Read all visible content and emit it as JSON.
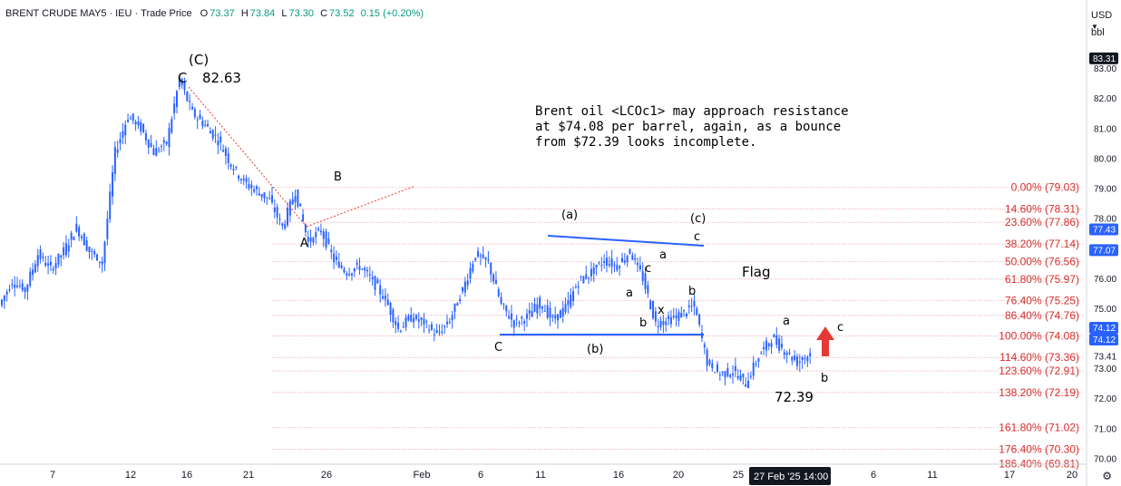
{
  "header": {
    "symbol": "BRENT CRUDE MAY5",
    "exchange": "IEU",
    "price_type": "Trade Price",
    "open_label": "O",
    "open": "73.37",
    "high_label": "H",
    "high": "73.84",
    "low_label": "L",
    "low": "73.30",
    "close_label": "C",
    "close": "73.52",
    "change": "0.15 (+0.20%)",
    "separator": "·"
  },
  "axis_top": {
    "currency": "USD",
    "currency_icon": "chevron-down-icon",
    "unit": "bbl"
  },
  "settings_icon": "gear-icon",
  "note": "Brent oil <LCOc1> may approach resistance\nat $74.08 per barrel, again, as a bounce\nfrom $72.39 looks incomplete.",
  "labels": {
    "wave_C_top": "(C)",
    "top_C": "C",
    "top_value": "82.63",
    "A": "A",
    "B": "B",
    "C_low": "C",
    "wa": "(a)",
    "wb": "(b)",
    "wc": "(c)",
    "c_top": "c",
    "a1": "a",
    "c1": "c",
    "a2": "a",
    "b1": "b",
    "b2": "b",
    "x1": "x",
    "flag": "Flag",
    "a3": "a",
    "c3": "c",
    "b3": "b",
    "low_value": "72.39"
  },
  "colors": {
    "up": "#089981",
    "down": "#2962ff",
    "candle": "#2962ff",
    "fib_text": "#d32f2f",
    "fib_line": "#e57373",
    "trend": "#2962ff",
    "dotted": "#e53935",
    "arrow": "#e53935"
  },
  "chart_data": {
    "type": "candlestick",
    "title": "BRENT CRUDE MAY5 · IEU · Trade Price",
    "ylim": [
      69.8,
      84.0
    ],
    "y_ticks": [
      "83.00",
      "82.00",
      "81.00",
      "80.00",
      "79.00",
      "78.00",
      "77.00",
      "76.00",
      "75.00",
      "74.00",
      "73.00",
      "72.00",
      "71.00",
      "70.00"
    ],
    "x_ticks": [
      "7",
      "12",
      "16",
      "21",
      "26",
      "Feb",
      "6",
      "11",
      "16",
      "20",
      "25",
      "6",
      "11",
      "17",
      "20"
    ],
    "series": [
      {
        "name": "",
        "points": [
          [
            "d0",
            75.1
          ],
          [
            "d1",
            75.9
          ],
          [
            "d2",
            75.6
          ],
          [
            "d3",
            76.8
          ],
          [
            "d4",
            76.3
          ],
          [
            "d5",
            76.9
          ],
          [
            "d6",
            77.7
          ],
          [
            "d7",
            76.9
          ],
          [
            "d8",
            76.5
          ],
          [
            "d9",
            80.2
          ],
          [
            "d10",
            81.4
          ],
          [
            "d11",
            81.0
          ],
          [
            "d12",
            80.2
          ],
          [
            "d13",
            80.5
          ],
          [
            "d14",
            82.63
          ],
          [
            "d15",
            81.5
          ],
          [
            "d16",
            81.1
          ],
          [
            "d17",
            80.6
          ],
          [
            "d18",
            79.8
          ],
          [
            "d19",
            79.2
          ],
          [
            "d20",
            78.9
          ],
          [
            "d21",
            78.6
          ],
          [
            "d22",
            77.7
          ],
          [
            "d23",
            78.9
          ],
          [
            "d24",
            77.2
          ],
          [
            "d25",
            77.6
          ],
          [
            "d26",
            76.6
          ],
          [
            "d27",
            76.2
          ],
          [
            "d28",
            76.4
          ],
          [
            "d29",
            75.9
          ],
          [
            "d30",
            75.3
          ],
          [
            "d31",
            74.3
          ],
          [
            "d32",
            74.7
          ],
          [
            "d33",
            74.5
          ],
          [
            "d34",
            74.1
          ],
          [
            "d35",
            74.6
          ],
          [
            "d36",
            75.6
          ],
          [
            "d37",
            76.8
          ],
          [
            "d38",
            76.5
          ],
          [
            "d39",
            75.1
          ],
          [
            "d40",
            74.5
          ],
          [
            "d41",
            74.7
          ],
          [
            "d42",
            75.2
          ],
          [
            "d43",
            74.6
          ],
          [
            "d44",
            75.0
          ],
          [
            "d45",
            75.9
          ],
          [
            "d46",
            76.2
          ],
          [
            "d47",
            76.6
          ],
          [
            "d48",
            76.4
          ],
          [
            "d49",
            76.9
          ],
          [
            "d50",
            76.0
          ],
          [
            "d51",
            74.5
          ],
          [
            "d52",
            74.6
          ],
          [
            "d53",
            74.8
          ],
          [
            "d54",
            75.1
          ],
          [
            "d55",
            73.2
          ],
          [
            "d56",
            72.8
          ],
          [
            "d57",
            72.9
          ],
          [
            "d58",
            72.5
          ],
          [
            "d59",
            73.4
          ],
          [
            "d60",
            74.0
          ],
          [
            "d61",
            73.6
          ],
          [
            "d62",
            73.2
          ],
          [
            "d63",
            73.5
          ]
        ]
      }
    ],
    "fib_levels": [
      {
        "label": "0.00% (79.03)",
        "value": 79.03
      },
      {
        "label": "14.60% (78.31)",
        "value": 78.31
      },
      {
        "label": "23.60% (77.86)",
        "value": 77.86
      },
      {
        "label": "38.20% (77.14)",
        "value": 77.14
      },
      {
        "label": "50.00% (76.56)",
        "value": 76.56
      },
      {
        "label": "61.80% (75.97)",
        "value": 75.97
      },
      {
        "label": "76.40% (75.25)",
        "value": 75.25
      },
      {
        "label": "86.40% (74.76)",
        "value": 74.76
      },
      {
        "label": "100.00% (74.08)",
        "value": 74.08
      },
      {
        "label": "114.60% (73.36)",
        "value": 73.36
      },
      {
        "label": "123.60% (72.91)",
        "value": 72.91
      },
      {
        "label": "138.20% (72.19)",
        "value": 72.19
      },
      {
        "label": "161.80% (71.02)",
        "value": 71.02
      },
      {
        "label": "176.40% (70.30)",
        "value": 70.3
      },
      {
        "label": "186.40% (69.81)",
        "value": 69.81
      }
    ],
    "price_tags": [
      {
        "label": "83.31",
        "value": 83.31,
        "style": "dark"
      },
      {
        "label": "77.43",
        "value": 77.43,
        "style": "blue"
      },
      {
        "label": "77.07",
        "value": 77.07,
        "style": "blue"
      },
      {
        "label": "74.12",
        "value": 74.12,
        "style": "blue"
      },
      {
        "label": "74.12",
        "value": 74.12,
        "style": "blue"
      },
      {
        "label": "73.41",
        "value": 73.41,
        "style": "plain"
      }
    ],
    "crosshair_date": "27 Feb '25",
    "crosshair_time": "14:00"
  }
}
